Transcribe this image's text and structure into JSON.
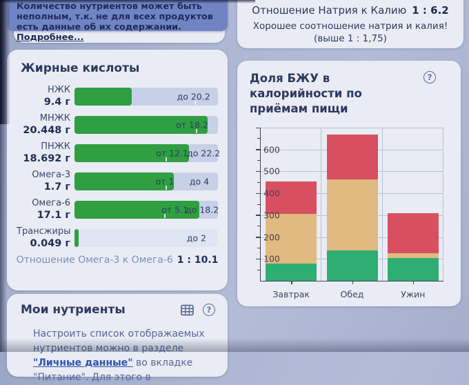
{
  "info_banner": {
    "text": "Количество нутриентов может быть неполным, т.к. не для всех продуктов есть данные об их содержании. ",
    "link": "Подробнее..."
  },
  "sodium_card": {
    "title": "Отношение Натрия к Калию",
    "value": "1 : 6.2",
    "note": "Хорошее соотношение натрия и калия! (выше 1 : 1,75)"
  },
  "fatty_acids": {
    "title": "Жирные кислоты",
    "bar_color": "#2f9f41",
    "track_color": "#c7d0e6",
    "rows": [
      {
        "name": "НЖК",
        "value": "9.4 г",
        "fill_pct": 40,
        "thresholds": [
          {
            "text": "до 20.2",
            "pos_pct": 83
          }
        ],
        "ticks": [
          84
        ]
      },
      {
        "name": "МНЖК",
        "value": "20.448 г",
        "fill_pct": 93,
        "thresholds": [
          {
            "text": "от 18.2",
            "pos_pct": 82
          }
        ],
        "ticks": [
          85
        ]
      },
      {
        "name": "ПНЖК",
        "value": "18.692 г",
        "fill_pct": 80,
        "thresholds": [
          {
            "text": "от 12.1",
            "pos_pct": 68
          },
          {
            "text": "до 22.2",
            "pos_pct": 90
          }
        ],
        "ticks": [
          64
        ]
      },
      {
        "name": "Омега-3",
        "value": "1.7 г",
        "fill_pct": 69,
        "thresholds": [
          {
            "text": "от 1",
            "pos_pct": 63
          },
          {
            "text": "до 4",
            "pos_pct": 87
          }
        ],
        "ticks": [
          64
        ]
      },
      {
        "name": "Омега-6",
        "value": "17.1 г",
        "fill_pct": 87,
        "thresholds": [
          {
            "text": "от 5.1",
            "pos_pct": 70
          },
          {
            "text": "до 18.2",
            "pos_pct": 89
          }
        ],
        "ticks": [
          63
        ]
      },
      {
        "name": "Трансжиры",
        "value": "0.049 г",
        "fill_pct": 3,
        "thresholds": [
          {
            "text": "до 2",
            "pos_pct": 85
          }
        ],
        "ticks": [],
        "track_light": true
      }
    ],
    "ratio_label": "Отношение Омега-3 к Омега-6",
    "ratio_value": "1 : 10.1"
  },
  "my_nutrients": {
    "title": "Мои нутриенты",
    "paragraph": {
      "before": "Настроить список отображаемых нутриентов можно в разделе ",
      "link": "\"Личные данные\"",
      "after": " во вкладке \"Питание\". Для этого в"
    }
  },
  "bju_card": {
    "title": "Доля БЖУ в калорийности по приёмам пищи"
  },
  "chart_data": {
    "type": "bar",
    "stacked": true,
    "title": "Доля БЖУ в калорийности по приёмам пищи",
    "categories": [
      "Завтрак",
      "Обед",
      "Ужин"
    ],
    "series": [
      {
        "name": "green-segment",
        "color": "#2fae74",
        "values": [
          80,
          140,
          105
        ]
      },
      {
        "name": "orange-segment",
        "color": "#e0ba80",
        "values": [
          225,
          325,
          20
        ]
      },
      {
        "name": "red-segment",
        "color": "#d94f62",
        "values": [
          150,
          205,
          185
        ]
      }
    ],
    "totals": [
      455,
      670,
      310
    ],
    "ylim": [
      0,
      700
    ],
    "ytick_step": 100,
    "ytick_labels": [
      "100",
      "200",
      "300",
      "400",
      "500",
      "600"
    ],
    "grid": true,
    "legend": false
  }
}
